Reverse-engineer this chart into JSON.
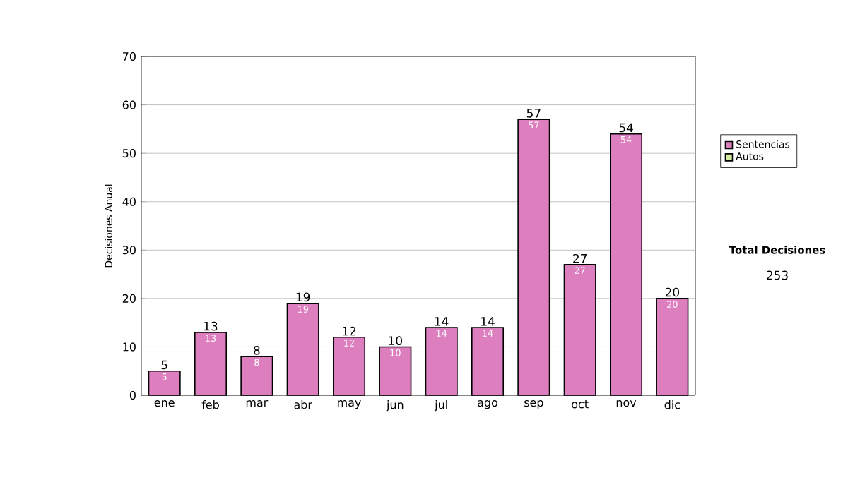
{
  "chart_data": {
    "type": "bar",
    "stacked": true,
    "ylabel": "Decisiones Anual",
    "categories": [
      "ene",
      "feb",
      "mar",
      "abr",
      "may",
      "jun",
      "jul",
      "ago",
      "sep",
      "oct",
      "nov",
      "dic"
    ],
    "series": [
      {
        "name": "Sentencias",
        "color": "#dd7fbf",
        "values": [
          5,
          13,
          8,
          19,
          12,
          10,
          14,
          14,
          57,
          27,
          54,
          20
        ],
        "value_labels": [
          "5",
          "13",
          "8",
          "19",
          "12",
          "10",
          "14",
          "14",
          "57",
          "27",
          "54",
          "20"
        ]
      },
      {
        "name": "Autos",
        "color": "#d6eca0",
        "values": [
          0,
          0,
          0,
          0,
          0,
          0,
          0,
          0,
          0,
          0,
          0,
          0
        ]
      }
    ],
    "totals": [
      "5",
      "13",
      "8",
      "19",
      "12",
      "10",
      "14",
      "14",
      "57",
      "27",
      "54",
      "20"
    ],
    "ylim": [
      0,
      70
    ],
    "yticks": [
      0,
      10,
      20,
      30,
      40,
      50,
      60,
      70
    ],
    "grid": "y",
    "legend": "right",
    "annotations": [
      "Total Decisiones",
      "253"
    ]
  }
}
